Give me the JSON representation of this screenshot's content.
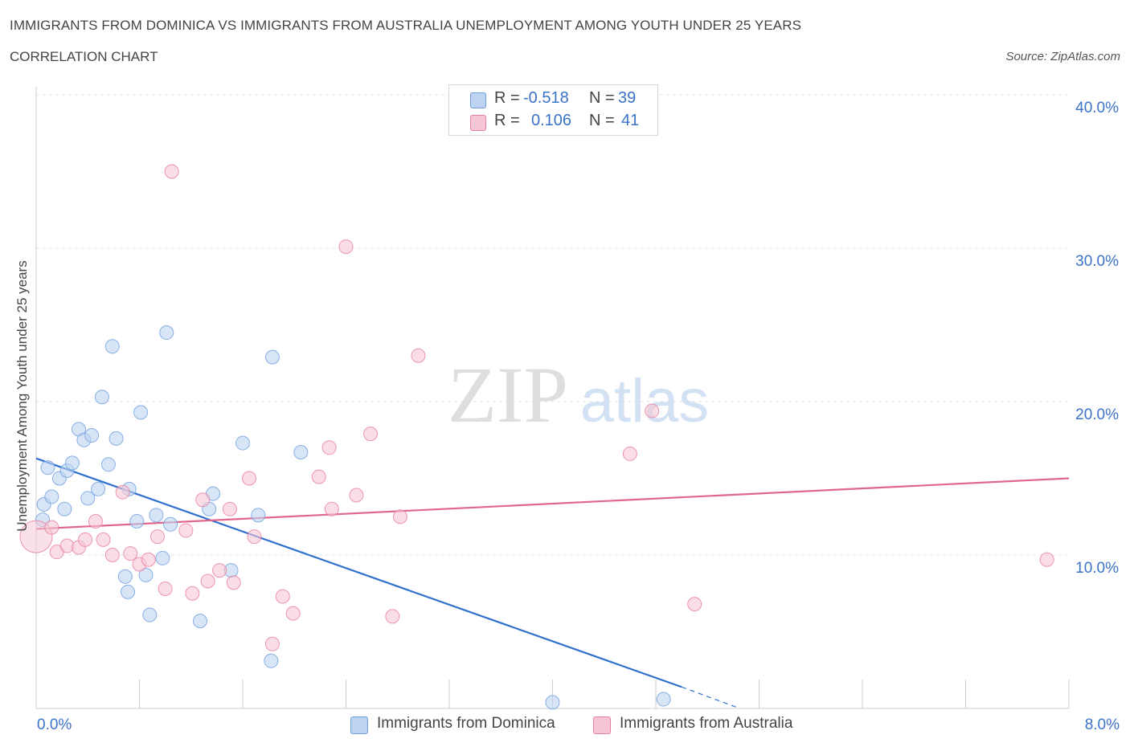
{
  "header": {
    "title": "IMMIGRANTS FROM DOMINICA VS IMMIGRANTS FROM AUSTRALIA UNEMPLOYMENT AMONG YOUTH UNDER 25 YEARS",
    "subtitle": "CORRELATION CHART",
    "source": "Source: ZipAtlas.com"
  },
  "legend": {
    "rows": [
      {
        "r_label": "R =",
        "r_value": "-0.518",
        "n_label": "N =",
        "n_value": "39"
      },
      {
        "r_label": "R =",
        "r_value": "0.106",
        "n_label": "N =",
        "n_value": "41"
      }
    ]
  },
  "watermark": {
    "zip": "ZIP",
    "atlas": "atlas"
  },
  "colors": {
    "dominica": "#6f9fde",
    "dominica_fill": "#bcd3f2",
    "australia": "#e87ea0",
    "australia_fill": "#f6c6d4",
    "dominica_line": "#2f6fce",
    "australia_line": "#e06690",
    "tick_text": "#3b73c7"
  },
  "chart_data": {
    "type": "scatter",
    "title": "IMMIGRANTS FROM DOMINICA VS IMMIGRANTS FROM AUSTRALIA UNEMPLOYMENT AMONG YOUTH UNDER 25 YEARS",
    "subtitle": "CORRELATION CHART",
    "xlabel": "",
    "ylabel": "Unemployment Among Youth under 25 years",
    "xlim": [
      0,
      8
    ],
    "ylim": [
      0,
      40
    ],
    "x_tick_labels": [
      "0.0%",
      "8.0%"
    ],
    "y_ticks": [
      10,
      20,
      30,
      40
    ],
    "y_tick_labels": [
      "10.0%",
      "20.0%",
      "30.0%",
      "40.0%"
    ],
    "grid": true,
    "legend_position": "bottom",
    "series": [
      {
        "name": "Immigrants from Dominica",
        "R": -0.518,
        "N": 39,
        "points": [
          [
            0.05,
            12.3
          ],
          [
            0.06,
            13.3
          ],
          [
            0.09,
            15.7
          ],
          [
            0.12,
            13.8
          ],
          [
            0.18,
            15.0
          ],
          [
            0.22,
            13.0
          ],
          [
            0.24,
            15.5
          ],
          [
            0.28,
            16.0
          ],
          [
            0.33,
            18.2
          ],
          [
            0.37,
            17.5
          ],
          [
            0.43,
            17.8
          ],
          [
            0.4,
            13.7
          ],
          [
            0.48,
            14.3
          ],
          [
            0.51,
            20.3
          ],
          [
            0.56,
            15.9
          ],
          [
            0.59,
            23.6
          ],
          [
            0.62,
            17.6
          ],
          [
            0.69,
            8.6
          ],
          [
            0.71,
            7.6
          ],
          [
            0.72,
            14.3
          ],
          [
            0.78,
            12.2
          ],
          [
            0.81,
            19.3
          ],
          [
            0.85,
            8.7
          ],
          [
            0.88,
            6.1
          ],
          [
            0.93,
            12.6
          ],
          [
            0.98,
            9.8
          ],
          [
            1.01,
            24.5
          ],
          [
            1.04,
            12.0
          ],
          [
            1.27,
            5.7
          ],
          [
            1.34,
            13.0
          ],
          [
            1.37,
            14.0
          ],
          [
            1.51,
            9.0
          ],
          [
            1.6,
            17.3
          ],
          [
            1.72,
            12.6
          ],
          [
            1.82,
            3.1
          ],
          [
            1.83,
            22.9
          ],
          [
            2.05,
            16.7
          ],
          [
            4.0,
            0.4
          ],
          [
            4.86,
            0.6
          ]
        ],
        "trend": {
          "x": [
            0.0,
            5.0
          ],
          "y": [
            16.3,
            1.4
          ],
          "dashed_extension": {
            "x": [
              5.0,
              5.45
            ],
            "y": [
              1.4,
              0.0
            ]
          }
        }
      },
      {
        "name": "Immigrants from Australia",
        "R": 0.106,
        "N": 41,
        "points": [
          [
            0.0,
            11.2
          ],
          [
            0.12,
            11.8
          ],
          [
            0.16,
            10.2
          ],
          [
            0.24,
            10.6
          ],
          [
            0.33,
            10.5
          ],
          [
            0.38,
            11.0
          ],
          [
            0.46,
            12.2
          ],
          [
            0.52,
            11.0
          ],
          [
            0.59,
            10.0
          ],
          [
            0.67,
            14.1
          ],
          [
            0.73,
            10.1
          ],
          [
            0.8,
            9.4
          ],
          [
            0.87,
            9.7
          ],
          [
            0.94,
            11.2
          ],
          [
            1.0,
            7.8
          ],
          [
            1.05,
            35.0
          ],
          [
            1.16,
            11.6
          ],
          [
            1.21,
            7.5
          ],
          [
            1.29,
            13.6
          ],
          [
            1.33,
            8.3
          ],
          [
            1.42,
            9.0
          ],
          [
            1.5,
            13.0
          ],
          [
            1.53,
            8.2
          ],
          [
            1.65,
            15.0
          ],
          [
            1.69,
            11.2
          ],
          [
            1.83,
            4.2
          ],
          [
            1.91,
            7.3
          ],
          [
            1.99,
            6.2
          ],
          [
            2.19,
            15.1
          ],
          [
            2.27,
            17.0
          ],
          [
            2.29,
            13.0
          ],
          [
            2.4,
            30.1
          ],
          [
            2.48,
            13.9
          ],
          [
            2.59,
            17.9
          ],
          [
            2.82,
            12.5
          ],
          [
            2.76,
            6.0
          ],
          [
            2.96,
            23.0
          ],
          [
            4.6,
            16.6
          ],
          [
            4.77,
            19.4
          ],
          [
            5.1,
            6.8
          ],
          [
            7.83,
            9.7
          ]
        ],
        "trend": {
          "x": [
            0.0,
            8.0
          ],
          "y": [
            11.7,
            15.0
          ]
        }
      }
    ]
  }
}
